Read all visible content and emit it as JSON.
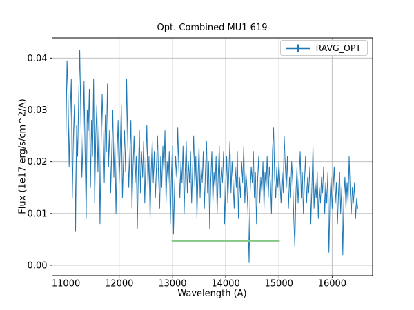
{
  "figure": {
    "background": "#ffffff"
  },
  "chart_data": {
    "type": "line",
    "title": "Opt. Combined MU1 619",
    "xlabel": "Wavelength (A)",
    "ylabel": "Flux (1e17 erg/s/cm^2/A)",
    "xlim": [
      10740,
      16760
    ],
    "ylim": [
      -0.002,
      0.0439
    ],
    "xticks": [
      11000,
      12000,
      13000,
      14000,
      15000,
      16000
    ],
    "yticks": [
      0.0,
      0.01,
      0.02,
      0.03,
      0.04
    ],
    "grid": true,
    "colors": {
      "grid": "#b8b8b8",
      "spine": "#000000",
      "accent_blue": "#1f77b4",
      "accent_green": "#86c786"
    },
    "legend": {
      "position": "upper right",
      "entries": [
        {
          "label": "RAVG_OPT",
          "color": "#1f77b4",
          "marker": "errorbar"
        }
      ]
    },
    "series": [
      {
        "name": "RAVG_OPT",
        "color": "#1f77b4",
        "line_width": 1,
        "x_start": 11000,
        "x_step": 20,
        "y": [
          0.025,
          0.0395,
          0.033,
          0.019,
          0.029,
          0.036,
          0.013,
          0.025,
          0.031,
          0.0065,
          0.027,
          0.021,
          0.033,
          0.0415,
          0.028,
          0.017,
          0.024,
          0.0355,
          0.022,
          0.009,
          0.03,
          0.026,
          0.034,
          0.015,
          0.028,
          0.021,
          0.036,
          0.012,
          0.025,
          0.031,
          0.018,
          0.027,
          0.008,
          0.023,
          0.033,
          0.026,
          0.016,
          0.029,
          0.022,
          0.035,
          0.019,
          0.026,
          0.014,
          0.022,
          0.03,
          0.017,
          0.024,
          0.01,
          0.021,
          0.028,
          0.016,
          0.023,
          0.031,
          0.013,
          0.02,
          0.026,
          0.018,
          0.036,
          0.024,
          0.015,
          0.022,
          0.028,
          0.011,
          0.019,
          0.025,
          0.016,
          0.021,
          0.007,
          0.018,
          0.026,
          0.014,
          0.022,
          0.017,
          0.024,
          0.012,
          0.02,
          0.027,
          0.015,
          0.021,
          0.009,
          0.018,
          0.024,
          0.016,
          0.022,
          0.013,
          0.019,
          0.025,
          0.017,
          0.011,
          0.021,
          0.015,
          0.023,
          0.018,
          0.026,
          0.012,
          0.02,
          0.016,
          0.022,
          0.008,
          0.017,
          0.023,
          0.006,
          0.015,
          0.021,
          0.017,
          0.0265,
          0.019,
          0.013,
          0.02,
          0.016,
          0.023,
          0.01,
          0.018,
          0.024,
          0.014,
          0.02,
          0.016,
          0.022,
          0.012,
          0.019,
          0.025,
          0.015,
          0.021,
          0.009,
          0.017,
          0.023,
          0.013,
          0.019,
          0.016,
          0.022,
          0.011,
          0.018,
          0.024,
          0.014,
          0.02,
          0.007,
          0.016,
          0.022,
          0.012,
          0.018,
          0.015,
          0.021,
          0.01,
          0.017,
          0.023,
          0.013,
          0.019,
          0.016,
          0.022,
          0.008,
          0.015,
          0.021,
          0.012,
          0.018,
          0.024,
          0.014,
          0.02,
          0.016,
          0.011,
          0.019,
          0.015,
          0.022,
          0.009,
          0.017,
          0.013,
          0.02,
          0.016,
          0.023,
          0.012,
          0.018,
          0.015,
          0.01,
          0.0005,
          0.014,
          0.019,
          0.016,
          0.022,
          0.013,
          0.018,
          0.008,
          0.016,
          0.021,
          0.012,
          0.017,
          0.014,
          0.02,
          0.011,
          0.018,
          0.015,
          0.021,
          0.013,
          0.019,
          0.016,
          0.01,
          0.022,
          0.0265,
          0.017,
          0.013,
          0.019,
          0.015,
          0.02,
          0.016,
          0.012,
          0.018,
          0.014,
          0.025,
          0.019,
          0.015,
          0.021,
          0.011,
          0.017,
          0.013,
          0.02,
          0.016,
          0.009,
          0.0035,
          0.014,
          0.019,
          0.012,
          0.017,
          0.022,
          0.013,
          0.018,
          0.01,
          0.016,
          0.021,
          0.012,
          0.017,
          0.014,
          0.019,
          0.008,
          0.015,
          0.023,
          0.011,
          0.016,
          0.013,
          0.018,
          0.009,
          0.015,
          0.012,
          0.017,
          0.014,
          0.019,
          0.01,
          0.016,
          0.012,
          0.018,
          0.0025,
          0.013,
          0.017,
          0.011,
          0.015,
          0.019,
          0.012,
          0.016,
          0.008,
          0.014,
          0.018,
          0.01,
          0.015,
          0.002,
          0.013,
          0.017,
          0.011,
          0.016,
          0.012,
          0.021,
          0.014,
          0.01,
          0.015,
          0.012,
          0.016,
          0.009,
          0.013,
          0.011
        ]
      },
      {
        "name": "flat-reference-segment",
        "color": "#86c786",
        "line_width": 2.5,
        "x": [
          13000,
          15000
        ],
        "y": [
          0.0047,
          0.0047
        ]
      }
    ]
  }
}
